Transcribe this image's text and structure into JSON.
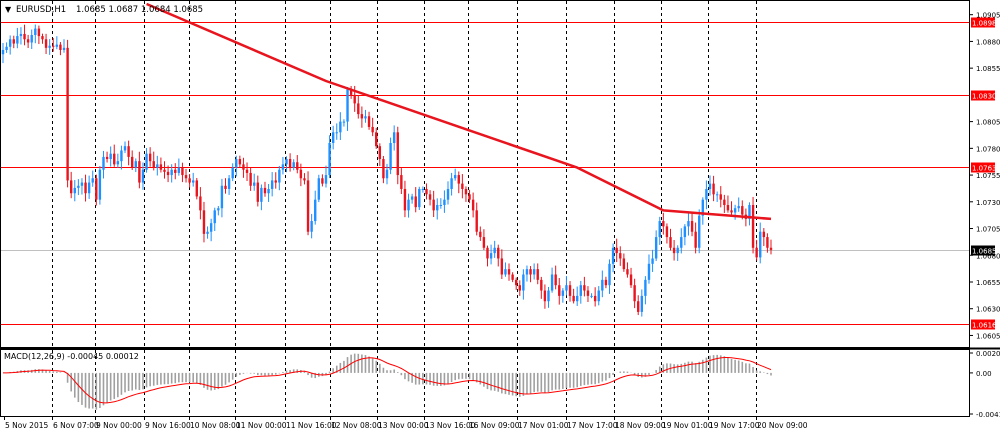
{
  "header": {
    "symbol": "EURUSD,H1",
    "ohlc": "1.0685 1.0687 1.0684 1.0685",
    "arrow": "▼"
  },
  "colors": {
    "bull": "#1e90ff",
    "bear": "#e8141e",
    "grid": "#000000",
    "hline": "#ff0000",
    "trend": "#e8141e",
    "current": "#c0c0c0",
    "histogram": "#a0a0a0",
    "signal": "#ff0000"
  },
  "chart_data": [
    {
      "type": "candlestick",
      "title": "EURUSD,H1",
      "ylim": [
        1.0597,
        1.0915
      ],
      "y_ticks": [
        "1.0905",
        "1.0880",
        "1.0855",
        "1.0805",
        "1.0780",
        "1.0755",
        "1.0730",
        "1.0705",
        "1.0680",
        "1.0655",
        "1.0630",
        "1.0605"
      ],
      "x_ticks": [
        "5 Nov 2015",
        "6 Nov 07:00",
        "9 Nov 00:00",
        "9 Nov 16:00",
        "10 Nov 08:00",
        "11 Nov 00:00",
        "11 Nov 16:00",
        "12 Nov 08:00",
        "13 Nov 00:00",
        "13 Nov 16:00",
        "16 Nov 09:00",
        "17 Nov 01:00",
        "17 Nov 17:00",
        "18 Nov 09:00",
        "19 Nov 01:00",
        "19 Nov 17:00",
        "20 Nov 09:00"
      ],
      "horizontal_levels": [
        {
          "value": 1.0898,
          "label": "1.0898"
        },
        {
          "value": 1.083,
          "label": "1.0830"
        },
        {
          "value": 1.0763,
          "label": "1.0763"
        },
        {
          "value": 1.0616,
          "label": "1.0616"
        }
      ],
      "current_price": {
        "value": 1.0685,
        "label": "1.0685"
      },
      "trendline": [
        {
          "bar": 40,
          "price": 1.0915
        },
        {
          "bar": 90,
          "price": 1.0843
        },
        {
          "bar": 160,
          "price": 1.0762
        },
        {
          "bar": 184,
          "price": 1.0722
        },
        {
          "bar": 214,
          "price": 1.0714
        }
      ],
      "close": [
        1.0872,
        1.0875,
        1.0882,
        1.0878,
        1.0885,
        1.0887,
        1.0882,
        1.0879,
        1.0886,
        1.0892,
        1.0885,
        1.0882,
        1.0874,
        1.0876,
        1.0875,
        1.0877,
        1.0872,
        1.0874,
        1.075,
        1.0738,
        1.0743,
        1.0745,
        1.0748,
        1.0738,
        1.0748,
        1.0752,
        1.0732,
        1.076,
        1.0772,
        1.077,
        1.0775,
        1.0765,
        1.0768,
        1.0778,
        1.0782,
        1.0772,
        1.0762,
        1.0768,
        1.0748,
        1.076,
        1.0775,
        1.0768,
        1.0762,
        1.0765,
        1.076,
        1.0758,
        1.0755,
        1.076,
        1.0757,
        1.0762,
        1.0755,
        1.0752,
        1.0748,
        1.075,
        1.0735,
        1.0722,
        1.07,
        1.0702,
        1.071,
        1.0722,
        1.0724,
        1.0745,
        1.0742,
        1.0752,
        1.0762,
        1.077,
        1.0765,
        1.076,
        1.0757,
        1.0745,
        1.0748,
        1.073,
        1.0743,
        1.0738,
        1.0742,
        1.075,
        1.0748,
        1.076,
        1.0765,
        1.077,
        1.0762,
        1.0767,
        1.076,
        1.0752,
        1.075,
        1.0702,
        1.0712,
        1.0732,
        1.0752,
        1.0747,
        1.0755,
        1.0785,
        1.0795,
        1.0795,
        1.0805,
        1.0805,
        1.0835,
        1.083,
        1.0822,
        1.0812,
        1.0808,
        1.081,
        1.08,
        1.0795,
        1.0782,
        1.077,
        1.0752,
        1.076,
        1.0785,
        1.0795,
        1.0755,
        1.0742,
        1.0722,
        1.0732,
        1.0735,
        1.0725,
        1.0742,
        1.0742,
        1.0737,
        1.0732,
        1.0722,
        1.0727,
        1.0727,
        1.0732,
        1.0742,
        1.0752,
        1.0755,
        1.0747,
        1.0742,
        1.0737,
        1.0732,
        1.0722,
        1.0702,
        1.0697,
        1.0687,
        1.0677,
        1.0682,
        1.0687,
        1.0677,
        1.0662,
        1.0667,
        1.0662,
        1.0657,
        1.0652,
        1.0647,
        1.0662,
        1.0667,
        1.0662,
        1.0667,
        1.0657,
        1.0647,
        1.0637,
        1.0647,
        1.0662,
        1.0652,
        1.0642,
        1.0647,
        1.0652,
        1.0642,
        1.0637,
        1.0642,
        1.0652,
        1.0647,
        1.0642,
        1.0642,
        1.0637,
        1.0647,
        1.0657,
        1.0652,
        1.0672,
        1.0687,
        1.0682,
        1.0677,
        1.0667,
        1.0662,
        1.0652,
        1.0637,
        1.0627,
        1.0642,
        1.0657,
        1.0672,
        1.0677,
        1.0697,
        1.0712,
        1.0707,
        1.0697,
        1.0687,
        1.0682,
        1.0687,
        1.0697,
        1.0707,
        1.0712,
        1.0702,
        1.0687,
        1.0717,
        1.0732,
        1.0742,
        1.0747,
        1.0737,
        1.0737,
        1.0732,
        1.0727,
        1.0722,
        1.072,
        1.0724,
        1.0726,
        1.0718,
        1.0714,
        1.0727,
        1.0687,
        1.0678,
        1.0702,
        1.0697,
        1.0687,
        1.0685
      ]
    },
    {
      "type": "bar",
      "title": "MACD(12,26,9) -0.00045 0.00012",
      "name": "MACD(12,26,9)",
      "value_main": "-0.00045",
      "value_signal": "0.00012",
      "ylim": [
        -0.00417,
        0.00202
      ],
      "y_ticks": [
        "0.00202",
        "0.00",
        "-0.00417"
      ]
    }
  ]
}
